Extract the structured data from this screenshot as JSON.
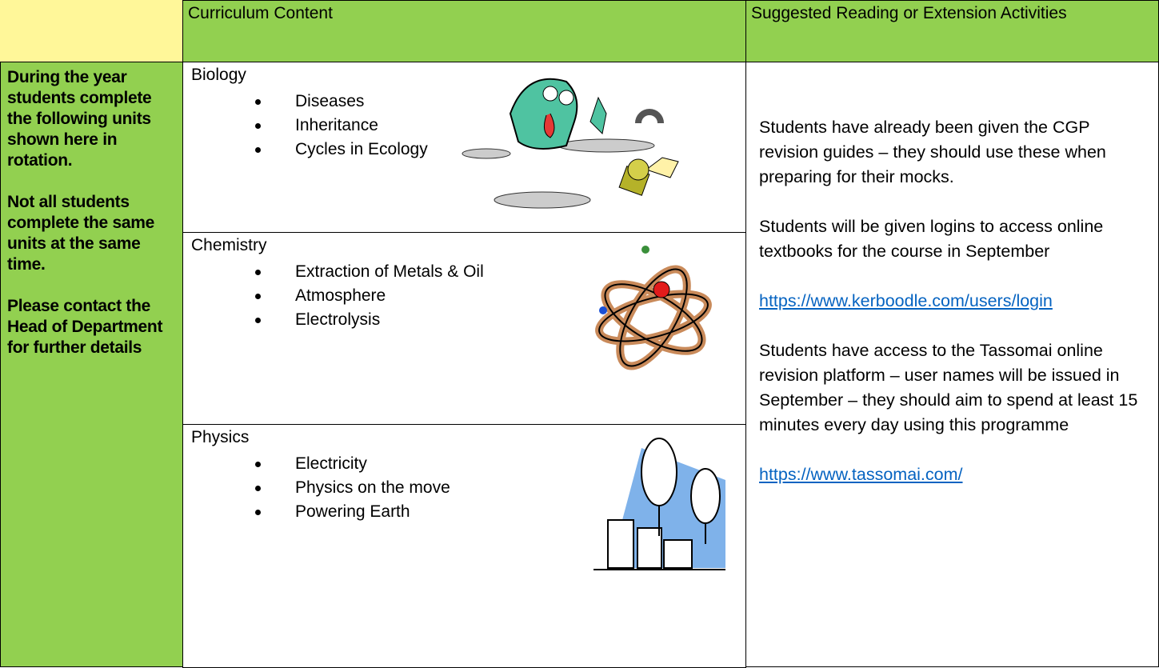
{
  "table": {
    "header": [
      "Curriculum Content",
      "Suggested Reading or Extension Activities"
    ],
    "sidebar": [
      "During the year students complete the following units shown here in rotation.",
      "Not all students complete the same units at the same time.",
      "Please contact the Head of Department for further details"
    ],
    "subjects": [
      {
        "name": "Biology",
        "topics": [
          "Diseases",
          "Inheritance",
          "Cycles in Ecology"
        ]
      },
      {
        "name": "Chemistry",
        "topics": [
          "Extraction of Metals & Oil",
          "Atmosphere",
          "Electrolysis"
        ]
      },
      {
        "name": "Physics",
        "topics": [
          "Electricity",
          "Physics on the move",
          "Powering Earth"
        ]
      }
    ],
    "reading": [
      {
        "text": "Students have already been given the CGP revision guides – they should use these when preparing for their mocks."
      },
      {
        "text": "Students will be given logins to access online textbooks for the course in September"
      },
      {
        "link": "https://www.kerboodle.com/users/login"
      },
      {
        "text": "Students have access to the Tassomai online revision platform – user names will be issued in September – they should aim to spend at least 15 minutes every day using this programme"
      },
      {
        "link": "https://www.tassomai.com/"
      }
    ]
  }
}
